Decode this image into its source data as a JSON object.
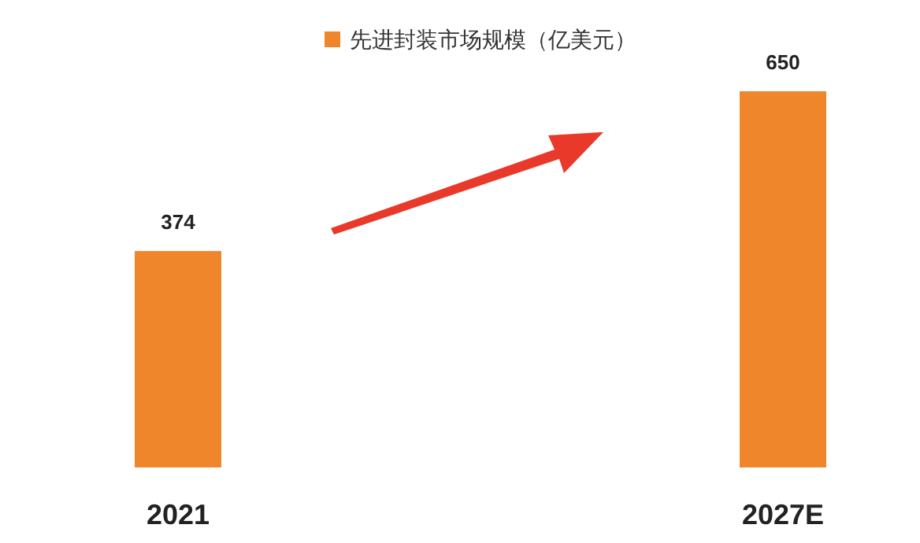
{
  "chart_data": {
    "type": "bar",
    "categories": [
      "2021",
      "2027E"
    ],
    "series": [
      {
        "name": "先进封装市场规模（亿美元）",
        "color": "#f0862c",
        "values": [
          374,
          650
        ]
      }
    ],
    "data_labels": true,
    "legend": "top",
    "grid": false
  }
}
